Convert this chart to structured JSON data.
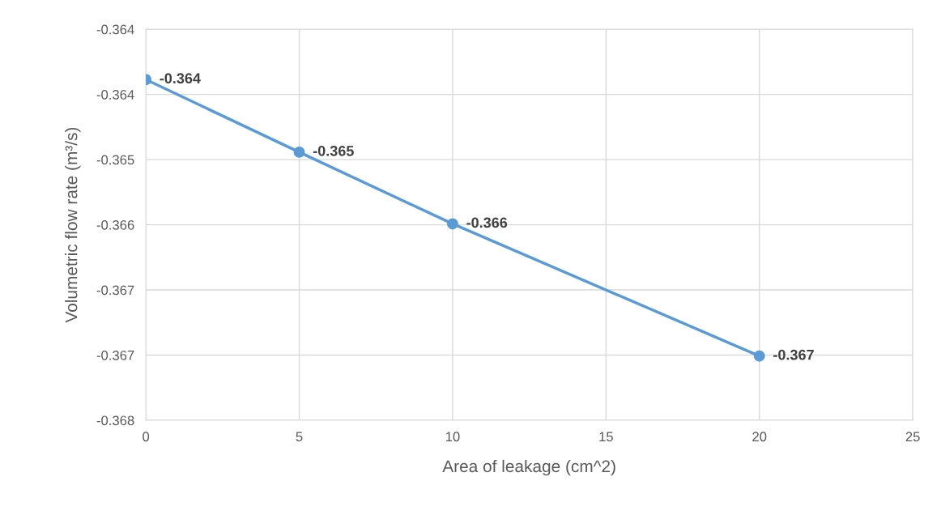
{
  "chart_data": {
    "type": "line",
    "xlabel": "Area of leakage (cm^2)",
    "ylabel": "Volumetric flow rate (m³/s)",
    "x": [
      0,
      5,
      10,
      20
    ],
    "series": [
      {
        "color": "#5b9bd5",
        "values": [
          -0.36434,
          -0.36512,
          -0.36589,
          -0.36731
        ],
        "value_labels": [
          "-0.364",
          "-0.365",
          "-0.366",
          "-0.367"
        ]
      }
    ],
    "xlim": [
      0,
      25
    ],
    "xticks": [
      0,
      5,
      10,
      15,
      20,
      25
    ],
    "ylim": [
      -0.368,
      -0.3638
    ],
    "yticks": [
      {
        "value": -0.368,
        "label": "-0.368"
      },
      {
        "value": -0.3673,
        "label": "-0.367"
      },
      {
        "value": -0.3666,
        "label": "-0.367"
      },
      {
        "value": -0.3659,
        "label": "-0.366"
      },
      {
        "value": -0.3652,
        "label": "-0.365"
      },
      {
        "value": -0.3645,
        "label": "-0.364"
      },
      {
        "value": -0.3638,
        "label": "-0.364"
      }
    ],
    "grid": true,
    "marker": "circle",
    "line_style": "solid"
  }
}
